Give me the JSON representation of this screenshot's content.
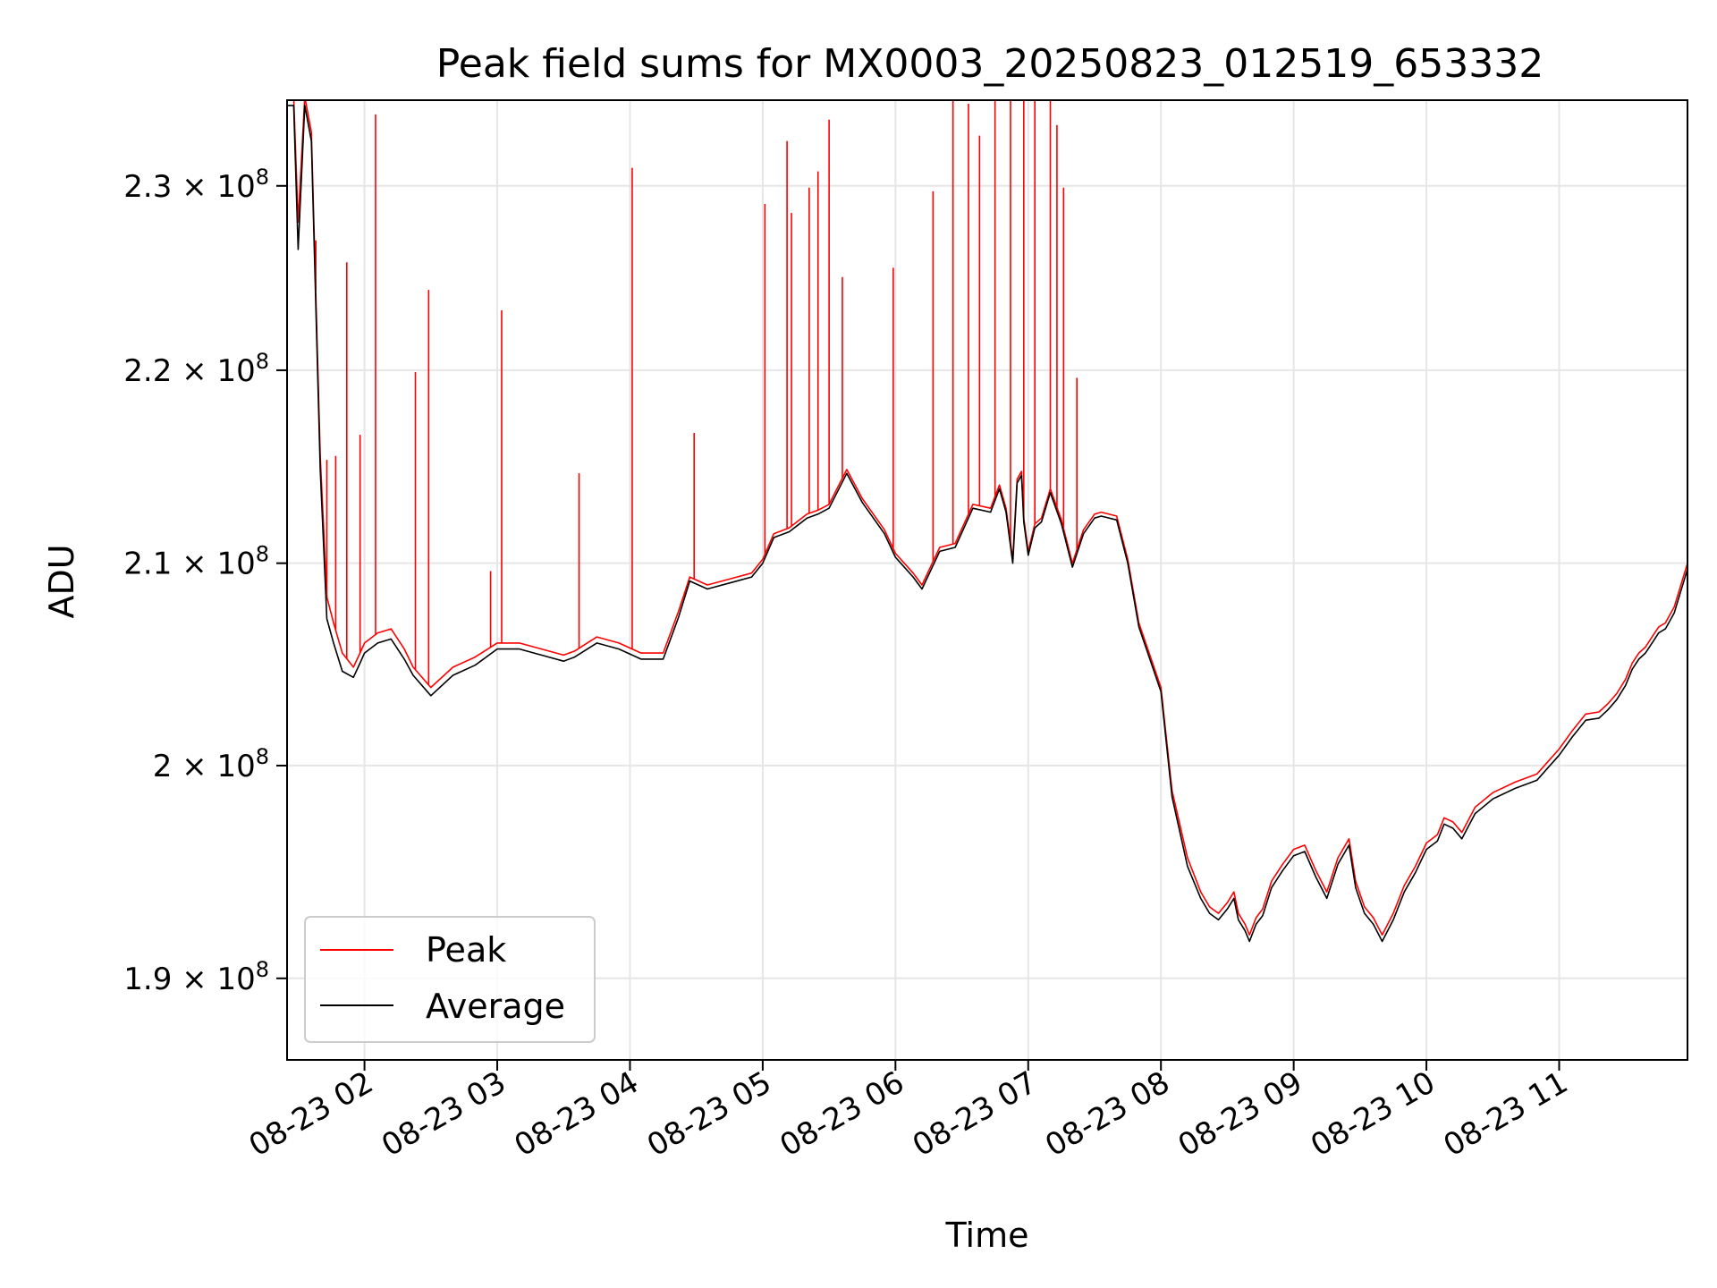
{
  "chart_data": {
    "type": "line",
    "title": "Peak field sums for MX0003_20250823_012519_653332",
    "xlabel": "Time",
    "ylabel": "ADU",
    "xlim": [
      "2025-08-23 01:25",
      "2025-08-23 11:58"
    ],
    "ylim": [
      186300000,
      234800000
    ],
    "yscale": "log",
    "grid": true,
    "legend_position": "lower-left",
    "x_ticks": [
      "08-23 02",
      "08-23 03",
      "08-23 04",
      "08-23 05",
      "08-23 06",
      "08-23 07",
      "08-23 08",
      "08-23 09",
      "08-23 10",
      "08-23 11"
    ],
    "y_ticks": [
      {
        "value": 190000000,
        "mantissa": "1.9",
        "exp": "8"
      },
      {
        "value": 200000000,
        "mantissa": "2",
        "exp": "8"
      },
      {
        "value": 210000000,
        "mantissa": "2.1",
        "exp": "8"
      },
      {
        "value": 220000000,
        "mantissa": "2.2",
        "exp": "8"
      },
      {
        "value": 230000000,
        "mantissa": "2.3",
        "exp": "8"
      }
    ],
    "series": [
      {
        "name": "Peak",
        "color": "#ff0000",
        "x": [
          "2025-08-23 01:25",
          "2025-08-23 01:28",
          "2025-08-23 01:30",
          "2025-08-23 01:33",
          "2025-08-23 01:36",
          "2025-08-23 01:40",
          "2025-08-23 01:43",
          "2025-08-23 01:46",
          "2025-08-23 01:50",
          "2025-08-23 01:55",
          "2025-08-23 01:58",
          "2025-08-23 02:00",
          "2025-08-23 02:06",
          "2025-08-23 02:12",
          "2025-08-23 02:18",
          "2025-08-23 02:22",
          "2025-08-23 02:30",
          "2025-08-23 02:40",
          "2025-08-23 02:50",
          "2025-08-23 03:00",
          "2025-08-23 03:10",
          "2025-08-23 03:20",
          "2025-08-23 03:30",
          "2025-08-23 03:35",
          "2025-08-23 03:45",
          "2025-08-23 03:55",
          "2025-08-23 04:05",
          "2025-08-23 04:15",
          "2025-08-23 04:22",
          "2025-08-23 04:27",
          "2025-08-23 04:35",
          "2025-08-23 04:45",
          "2025-08-23 04:55",
          "2025-08-23 05:00",
          "2025-08-23 05:05",
          "2025-08-23 05:12",
          "2025-08-23 05:20",
          "2025-08-23 05:25",
          "2025-08-23 05:30",
          "2025-08-23 05:38",
          "2025-08-23 05:45",
          "2025-08-23 05:50",
          "2025-08-23 05:55",
          "2025-08-23 06:00",
          "2025-08-23 06:08",
          "2025-08-23 06:12",
          "2025-08-23 06:20",
          "2025-08-23 06:27",
          "2025-08-23 06:35",
          "2025-08-23 06:43",
          "2025-08-23 06:47",
          "2025-08-23 06:50",
          "2025-08-23 06:53",
          "2025-08-23 06:55",
          "2025-08-23 06:57",
          "2025-08-23 06:58",
          "2025-08-23 07:00",
          "2025-08-23 07:03",
          "2025-08-23 07:06",
          "2025-08-23 07:10",
          "2025-08-23 07:15",
          "2025-08-23 07:20",
          "2025-08-23 07:25",
          "2025-08-23 07:30",
          "2025-08-23 07:33",
          "2025-08-23 07:40",
          "2025-08-23 07:45",
          "2025-08-23 07:50",
          "2025-08-23 08:00",
          "2025-08-23 08:05",
          "2025-08-23 08:12",
          "2025-08-23 08:18",
          "2025-08-23 08:22",
          "2025-08-23 08:26",
          "2025-08-23 08:30",
          "2025-08-23 08:33",
          "2025-08-23 08:35",
          "2025-08-23 08:38",
          "2025-08-23 08:40",
          "2025-08-23 08:43",
          "2025-08-23 08:46",
          "2025-08-23 08:50",
          "2025-08-23 08:55",
          "2025-08-23 09:00",
          "2025-08-23 09:05",
          "2025-08-23 09:10",
          "2025-08-23 09:15",
          "2025-08-23 09:20",
          "2025-08-23 09:25",
          "2025-08-23 09:28",
          "2025-08-23 09:32",
          "2025-08-23 09:36",
          "2025-08-23 09:40",
          "2025-08-23 09:45",
          "2025-08-23 09:50",
          "2025-08-23 09:55",
          "2025-08-23 10:00",
          "2025-08-23 10:05",
          "2025-08-23 10:08",
          "2025-08-23 10:12",
          "2025-08-23 10:16",
          "2025-08-23 10:22",
          "2025-08-23 10:30",
          "2025-08-23 10:40",
          "2025-08-23 10:50",
          "2025-08-23 10:55",
          "2025-08-23 11:00",
          "2025-08-23 11:06",
          "2025-08-23 11:12",
          "2025-08-23 11:18",
          "2025-08-23 11:22",
          "2025-08-23 11:26",
          "2025-08-23 11:30",
          "2025-08-23 11:33",
          "2025-08-23 11:36",
          "2025-08-23 11:39",
          "2025-08-23 11:42",
          "2025-08-23 11:45",
          "2025-08-23 11:48",
          "2025-08-23 11:52",
          "2025-08-23 11:58"
        ],
        "y": [
          235000000,
          235000000,
          228000000,
          235000000,
          233000000,
          215500000,
          208300000,
          207000000,
          205500000,
          204800000,
          205500000,
          206000000,
          206500000,
          206700000,
          205700000,
          204800000,
          203800000,
          204800000,
          205300000,
          206000000,
          206000000,
          205700000,
          205400000,
          205600000,
          206300000,
          206000000,
          205500000,
          205500000,
          207600000,
          209300000,
          208900000,
          209200000,
          209500000,
          210200000,
          211500000,
          211800000,
          212500000,
          212700000,
          213000000,
          214800000,
          213300000,
          212500000,
          211700000,
          210500000,
          209500000,
          208900000,
          210800000,
          211000000,
          213000000,
          212800000,
          214000000,
          212800000,
          210200000,
          214300000,
          214700000,
          212300000,
          210600000,
          212000000,
          212300000,
          213800000,
          212200000,
          210000000,
          211700000,
          212500000,
          212600000,
          212400000,
          210200000,
          207000000,
          203800000,
          198800000,
          195600000,
          194000000,
          193300000,
          193000000,
          193500000,
          194000000,
          193000000,
          192500000,
          192000000,
          192800000,
          193200000,
          194500000,
          195300000,
          196000000,
          196200000,
          195000000,
          194000000,
          195600000,
          196500000,
          194500000,
          193300000,
          192800000,
          192000000,
          193000000,
          194300000,
          195200000,
          196300000,
          196700000,
          197500000,
          197300000,
          196800000,
          198000000,
          198700000,
          199200000,
          199600000,
          200200000,
          200800000,
          201700000,
          202500000,
          202600000,
          203000000,
          203500000,
          204200000,
          205000000,
          205500000,
          205800000,
          206300000,
          206800000,
          207000000,
          207800000,
          210000000
        ],
        "spikes": [
          {
            "x": "2025-08-23 01:38",
            "y": 227000000
          },
          {
            "x": "2025-08-23 01:43",
            "y": 215300000
          },
          {
            "x": "2025-08-23 01:47",
            "y": 215500000
          },
          {
            "x": "2025-08-23 01:52",
            "y": 225800000
          },
          {
            "x": "2025-08-23 01:58",
            "y": 216600000
          },
          {
            "x": "2025-08-23 02:05",
            "y": 234000000
          },
          {
            "x": "2025-08-23 02:23",
            "y": 219900000
          },
          {
            "x": "2025-08-23 02:29",
            "y": 224300000
          },
          {
            "x": "2025-08-23 02:57",
            "y": 209600000
          },
          {
            "x": "2025-08-23 03:02",
            "y": 223200000
          },
          {
            "x": "2025-08-23 03:37",
            "y": 214600000
          },
          {
            "x": "2025-08-23 04:01",
            "y": 231000000
          },
          {
            "x": "2025-08-23 04:29",
            "y": 216700000
          },
          {
            "x": "2025-08-23 05:01",
            "y": 229000000
          },
          {
            "x": "2025-08-23 05:11",
            "y": 232500000
          },
          {
            "x": "2025-08-23 05:13",
            "y": 228500000
          },
          {
            "x": "2025-08-23 05:21",
            "y": 229900000
          },
          {
            "x": "2025-08-23 05:25",
            "y": 230800000
          },
          {
            "x": "2025-08-23 05:30",
            "y": 233700000
          },
          {
            "x": "2025-08-23 05:36",
            "y": 225000000
          },
          {
            "x": "2025-08-23 05:59",
            "y": 225500000
          },
          {
            "x": "2025-08-23 06:17",
            "y": 229700000
          },
          {
            "x": "2025-08-23 06:26",
            "y": 234800000
          },
          {
            "x": "2025-08-23 06:33",
            "y": 234600000
          },
          {
            "x": "2025-08-23 06:38",
            "y": 232800000
          },
          {
            "x": "2025-08-23 06:45",
            "y": 234800000
          },
          {
            "x": "2025-08-23 06:52",
            "y": 234800000
          },
          {
            "x": "2025-08-23 06:58",
            "y": 234800000
          },
          {
            "x": "2025-08-23 07:03",
            "y": 234800000
          },
          {
            "x": "2025-08-23 07:10",
            "y": 234800000
          },
          {
            "x": "2025-08-23 07:13",
            "y": 233400000
          },
          {
            "x": "2025-08-23 07:16",
            "y": 229900000
          },
          {
            "x": "2025-08-23 07:22",
            "y": 219600000
          }
        ]
      },
      {
        "name": "Average",
        "color": "#000000",
        "x": [
          "2025-08-23 01:25",
          "2025-08-23 01:28",
          "2025-08-23 01:30",
          "2025-08-23 01:33",
          "2025-08-23 01:36",
          "2025-08-23 01:40",
          "2025-08-23 01:43",
          "2025-08-23 01:46",
          "2025-08-23 01:50",
          "2025-08-23 01:55",
          "2025-08-23 01:58",
          "2025-08-23 02:00",
          "2025-08-23 02:06",
          "2025-08-23 02:12",
          "2025-08-23 02:18",
          "2025-08-23 02:22",
          "2025-08-23 02:30",
          "2025-08-23 02:40",
          "2025-08-23 02:50",
          "2025-08-23 03:00",
          "2025-08-23 03:10",
          "2025-08-23 03:20",
          "2025-08-23 03:30",
          "2025-08-23 03:35",
          "2025-08-23 03:45",
          "2025-08-23 03:55",
          "2025-08-23 04:05",
          "2025-08-23 04:15",
          "2025-08-23 04:22",
          "2025-08-23 04:27",
          "2025-08-23 04:35",
          "2025-08-23 04:45",
          "2025-08-23 04:55",
          "2025-08-23 05:00",
          "2025-08-23 05:05",
          "2025-08-23 05:12",
          "2025-08-23 05:20",
          "2025-08-23 05:25",
          "2025-08-23 05:30",
          "2025-08-23 05:38",
          "2025-08-23 05:45",
          "2025-08-23 05:50",
          "2025-08-23 05:55",
          "2025-08-23 06:00",
          "2025-08-23 06:08",
          "2025-08-23 06:12",
          "2025-08-23 06:20",
          "2025-08-23 06:27",
          "2025-08-23 06:35",
          "2025-08-23 06:43",
          "2025-08-23 06:47",
          "2025-08-23 06:50",
          "2025-08-23 06:53",
          "2025-08-23 06:55",
          "2025-08-23 06:57",
          "2025-08-23 06:58",
          "2025-08-23 07:00",
          "2025-08-23 07:03",
          "2025-08-23 07:06",
          "2025-08-23 07:10",
          "2025-08-23 07:15",
          "2025-08-23 07:20",
          "2025-08-23 07:25",
          "2025-08-23 07:30",
          "2025-08-23 07:33",
          "2025-08-23 07:40",
          "2025-08-23 07:45",
          "2025-08-23 07:50",
          "2025-08-23 08:00",
          "2025-08-23 08:05",
          "2025-08-23 08:12",
          "2025-08-23 08:18",
          "2025-08-23 08:22",
          "2025-08-23 08:26",
          "2025-08-23 08:30",
          "2025-08-23 08:33",
          "2025-08-23 08:35",
          "2025-08-23 08:38",
          "2025-08-23 08:40",
          "2025-08-23 08:43",
          "2025-08-23 08:46",
          "2025-08-23 08:50",
          "2025-08-23 08:55",
          "2025-08-23 09:00",
          "2025-08-23 09:05",
          "2025-08-23 09:10",
          "2025-08-23 09:15",
          "2025-08-23 09:20",
          "2025-08-23 09:25",
          "2025-08-23 09:28",
          "2025-08-23 09:32",
          "2025-08-23 09:36",
          "2025-08-23 09:40",
          "2025-08-23 09:45",
          "2025-08-23 09:50",
          "2025-08-23 09:55",
          "2025-08-23 10:00",
          "2025-08-23 10:05",
          "2025-08-23 10:08",
          "2025-08-23 10:12",
          "2025-08-23 10:16",
          "2025-08-23 10:22",
          "2025-08-23 10:30",
          "2025-08-23 10:40",
          "2025-08-23 10:50",
          "2025-08-23 10:55",
          "2025-08-23 11:00",
          "2025-08-23 11:06",
          "2025-08-23 11:12",
          "2025-08-23 11:18",
          "2025-08-23 11:22",
          "2025-08-23 11:26",
          "2025-08-23 11:30",
          "2025-08-23 11:33",
          "2025-08-23 11:36",
          "2025-08-23 11:39",
          "2025-08-23 11:42",
          "2025-08-23 11:45",
          "2025-08-23 11:48",
          "2025-08-23 11:52",
          "2025-08-23 11:58"
        ],
        "y": [
          234500000,
          234500000,
          226500000,
          234500000,
          232500000,
          214800000,
          207200000,
          206000000,
          204600000,
          204300000,
          205000000,
          205500000,
          206000000,
          206200000,
          205200000,
          204400000,
          203400000,
          204400000,
          204900000,
          205700000,
          205700000,
          205400000,
          205100000,
          205300000,
          206000000,
          205700000,
          205200000,
          205200000,
          207300000,
          209100000,
          208700000,
          209000000,
          209300000,
          210000000,
          211300000,
          211600000,
          212300000,
          212500000,
          212800000,
          214600000,
          213100000,
          212300000,
          211500000,
          210300000,
          209300000,
          208700000,
          210600000,
          210800000,
          212800000,
          212600000,
          213800000,
          212600000,
          210000000,
          214100000,
          214500000,
          212100000,
          210400000,
          211800000,
          212100000,
          213600000,
          212000000,
          209800000,
          211500000,
          212300000,
          212400000,
          212200000,
          210000000,
          206800000,
          203600000,
          198500000,
          195200000,
          193700000,
          193000000,
          192700000,
          193200000,
          193700000,
          192700000,
          192200000,
          191700000,
          192500000,
          192900000,
          194200000,
          195000000,
          195700000,
          195900000,
          194700000,
          193700000,
          195300000,
          196200000,
          194200000,
          193000000,
          192500000,
          191700000,
          192700000,
          194000000,
          194900000,
          196000000,
          196400000,
          197200000,
          197000000,
          196500000,
          197700000,
          198400000,
          198900000,
          199300000,
          199900000,
          200500000,
          201400000,
          202200000,
          202300000,
          202700000,
          203200000,
          203900000,
          204700000,
          205200000,
          205500000,
          206000000,
          206500000,
          206700000,
          207500000,
          209700000
        ]
      }
    ]
  }
}
